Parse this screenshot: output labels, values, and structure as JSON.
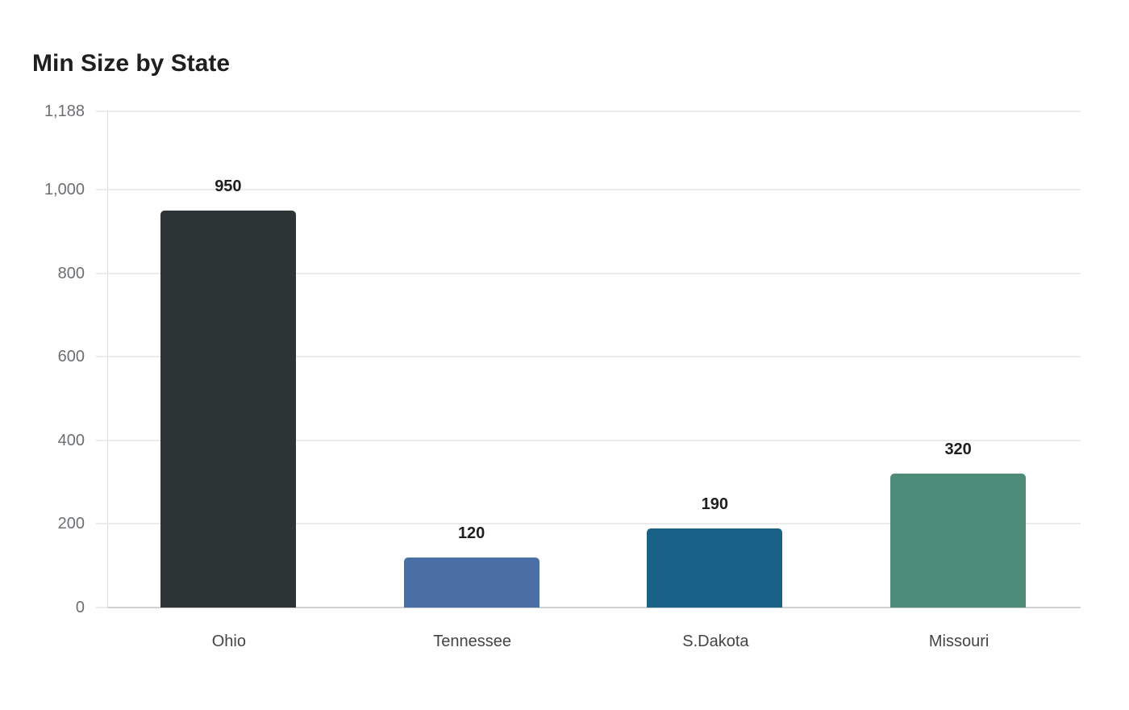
{
  "chart_data": {
    "type": "bar",
    "title": "Min Size by State",
    "xlabel": "",
    "ylabel": "",
    "categories": [
      "Ohio",
      "Tennessee",
      "S.Dakota",
      "Missouri"
    ],
    "values": [
      950,
      120,
      190,
      320
    ],
    "colors": [
      "#2d3436",
      "#4a6fa5",
      "#196186",
      "#4e8c7a"
    ],
    "ylim": [
      0,
      1188
    ],
    "yticks": [
      0,
      200,
      400,
      600,
      800,
      1000,
      1188
    ],
    "ytick_labels": [
      "0",
      "200",
      "400",
      "600",
      "800",
      "1,000",
      "1,188"
    ],
    "data_labels": [
      "950",
      "120",
      "190",
      "320"
    ],
    "grid": true,
    "legend": null
  }
}
